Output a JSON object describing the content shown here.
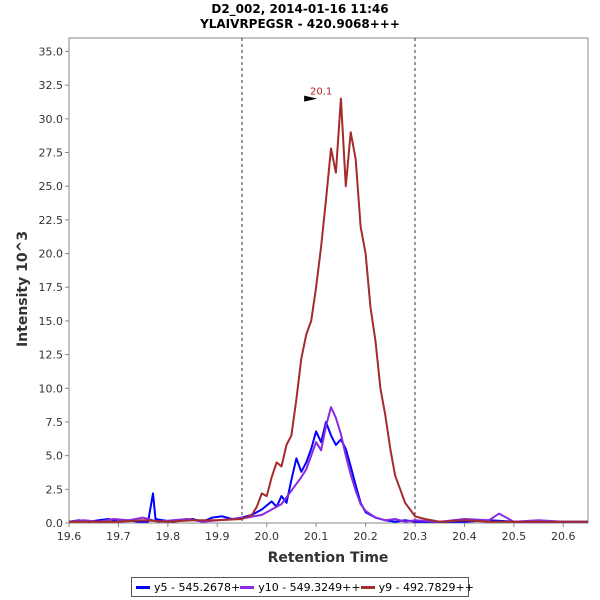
{
  "chart_data": {
    "type": "line",
    "title": "D2_002, 2014-01-16 11:46",
    "subtitle": "YLAIVRPEGSR - 420.9068+++",
    "xlabel": "Retention Time",
    "ylabel": "Intensity 10^3",
    "xlim": [
      19.6,
      20.65
    ],
    "ylim": [
      0,
      36
    ],
    "x_ticks": [
      "19.6",
      "19.7",
      "19.8",
      "19.9",
      "20.0",
      "20.1",
      "20.2",
      "20.3",
      "20.4",
      "20.5",
      "20.6"
    ],
    "y_ticks": [
      "0.0",
      "2.5",
      "5.0",
      "7.5",
      "10.0",
      "12.5",
      "15.0",
      "17.5",
      "20.0",
      "22.5",
      "25.0",
      "27.5",
      "30.0",
      "32.5",
      "35.0"
    ],
    "boundaries": [
      19.95,
      20.3
    ],
    "peak_annotation": {
      "x": 20.1,
      "y": 31.5,
      "label": "20.1",
      "color": "#b22222"
    },
    "series": [
      {
        "name": "y5 - 545.2678+",
        "color": "#0000ff",
        "points": [
          [
            19.6,
            0.1
          ],
          [
            19.62,
            0.2
          ],
          [
            19.64,
            0.1
          ],
          [
            19.66,
            0.2
          ],
          [
            19.68,
            0.3
          ],
          [
            19.7,
            0.1
          ],
          [
            19.72,
            0.2
          ],
          [
            19.74,
            0.1
          ],
          [
            19.76,
            0.1
          ],
          [
            19.77,
            2.2
          ],
          [
            19.775,
            0.3
          ],
          [
            19.79,
            0.2
          ],
          [
            19.81,
            0.1
          ],
          [
            19.83,
            0.2
          ],
          [
            19.85,
            0.3
          ],
          [
            19.87,
            0.1
          ],
          [
            19.89,
            0.4
          ],
          [
            19.91,
            0.5
          ],
          [
            19.93,
            0.3
          ],
          [
            19.95,
            0.4
          ],
          [
            19.97,
            0.6
          ],
          [
            19.99,
            1.0
          ],
          [
            20.01,
            1.6
          ],
          [
            20.02,
            1.2
          ],
          [
            20.03,
            2.0
          ],
          [
            20.04,
            1.5
          ],
          [
            20.05,
            3.2
          ],
          [
            20.06,
            4.8
          ],
          [
            20.07,
            3.8
          ],
          [
            20.08,
            4.5
          ],
          [
            20.09,
            5.5
          ],
          [
            20.1,
            6.8
          ],
          [
            20.11,
            6.0
          ],
          [
            20.12,
            7.5
          ],
          [
            20.13,
            6.5
          ],
          [
            20.14,
            5.8
          ],
          [
            20.15,
            6.2
          ],
          [
            20.16,
            5.5
          ],
          [
            20.17,
            4.2
          ],
          [
            20.18,
            2.8
          ],
          [
            20.19,
            1.5
          ],
          [
            20.2,
            0.8
          ],
          [
            20.22,
            0.4
          ],
          [
            20.24,
            0.2
          ],
          [
            20.26,
            0.1
          ],
          [
            20.28,
            0.2
          ],
          [
            20.3,
            0.1
          ],
          [
            20.35,
            0.1
          ],
          [
            20.4,
            0.1
          ],
          [
            20.45,
            0.2
          ],
          [
            20.5,
            0.1
          ],
          [
            20.55,
            0.1
          ],
          [
            20.6,
            0.1
          ],
          [
            20.65,
            0.1
          ]
        ]
      },
      {
        "name": "y10 - 549.3249++",
        "color": "#8a2be2",
        "points": [
          [
            19.6,
            0.1
          ],
          [
            19.63,
            0.2
          ],
          [
            19.66,
            0.1
          ],
          [
            19.69,
            0.3
          ],
          [
            19.72,
            0.2
          ],
          [
            19.75,
            0.4
          ],
          [
            19.78,
            0.1
          ],
          [
            19.81,
            0.2
          ],
          [
            19.84,
            0.3
          ],
          [
            19.87,
            0.1
          ],
          [
            19.9,
            0.2
          ],
          [
            19.93,
            0.3
          ],
          [
            19.96,
            0.4
          ],
          [
            19.99,
            0.6
          ],
          [
            20.01,
            1.0
          ],
          [
            20.03,
            1.4
          ],
          [
            20.05,
            2.4
          ],
          [
            20.07,
            3.4
          ],
          [
            20.08,
            4.0
          ],
          [
            20.09,
            5.0
          ],
          [
            20.1,
            6.0
          ],
          [
            20.11,
            5.4
          ],
          [
            20.12,
            7.2
          ],
          [
            20.13,
            8.6
          ],
          [
            20.14,
            7.8
          ],
          [
            20.15,
            6.6
          ],
          [
            20.16,
            5.0
          ],
          [
            20.17,
            3.6
          ],
          [
            20.18,
            2.4
          ],
          [
            20.19,
            1.4
          ],
          [
            20.2,
            0.9
          ],
          [
            20.22,
            0.4
          ],
          [
            20.24,
            0.2
          ],
          [
            20.26,
            0.3
          ],
          [
            20.28,
            0.1
          ],
          [
            20.3,
            0.2
          ],
          [
            20.35,
            0.1
          ],
          [
            20.4,
            0.3
          ],
          [
            20.45,
            0.2
          ],
          [
            20.47,
            0.7
          ],
          [
            20.5,
            0.1
          ],
          [
            20.55,
            0.2
          ],
          [
            20.6,
            0.1
          ],
          [
            20.65,
            0.1
          ]
        ]
      },
      {
        "name": "y9 - 492.7829++",
        "color": "#a52a2a",
        "points": [
          [
            19.6,
            0.1
          ],
          [
            19.65,
            0.1
          ],
          [
            19.7,
            0.1
          ],
          [
            19.75,
            0.2
          ],
          [
            19.8,
            0.1
          ],
          [
            19.85,
            0.2
          ],
          [
            19.9,
            0.2
          ],
          [
            19.95,
            0.3
          ],
          [
            19.97,
            0.6
          ],
          [
            19.98,
            1.2
          ],
          [
            19.99,
            2.2
          ],
          [
            20.0,
            2.0
          ],
          [
            20.01,
            3.4
          ],
          [
            20.02,
            4.5
          ],
          [
            20.03,
            4.2
          ],
          [
            20.04,
            5.8
          ],
          [
            20.05,
            6.5
          ],
          [
            20.06,
            9.2
          ],
          [
            20.07,
            12.2
          ],
          [
            20.08,
            14.0
          ],
          [
            20.09,
            15.0
          ],
          [
            20.1,
            17.5
          ],
          [
            20.11,
            20.5
          ],
          [
            20.12,
            24.0
          ],
          [
            20.13,
            27.8
          ],
          [
            20.14,
            26.0
          ],
          [
            20.15,
            31.5
          ],
          [
            20.16,
            25.0
          ],
          [
            20.17,
            29.0
          ],
          [
            20.18,
            27.0
          ],
          [
            20.19,
            22.0
          ],
          [
            20.2,
            20.0
          ],
          [
            20.21,
            16.0
          ],
          [
            20.22,
            13.5
          ],
          [
            20.23,
            10.0
          ],
          [
            20.24,
            8.0
          ],
          [
            20.25,
            5.5
          ],
          [
            20.26,
            3.5
          ],
          [
            20.27,
            2.5
          ],
          [
            20.28,
            1.5
          ],
          [
            20.29,
            1.0
          ],
          [
            20.3,
            0.5
          ],
          [
            20.32,
            0.3
          ],
          [
            20.35,
            0.1
          ],
          [
            20.4,
            0.2
          ],
          [
            20.45,
            0.1
          ],
          [
            20.5,
            0.1
          ],
          [
            20.55,
            0.1
          ],
          [
            20.6,
            0.1
          ],
          [
            20.65,
            0.1
          ]
        ]
      }
    ]
  }
}
